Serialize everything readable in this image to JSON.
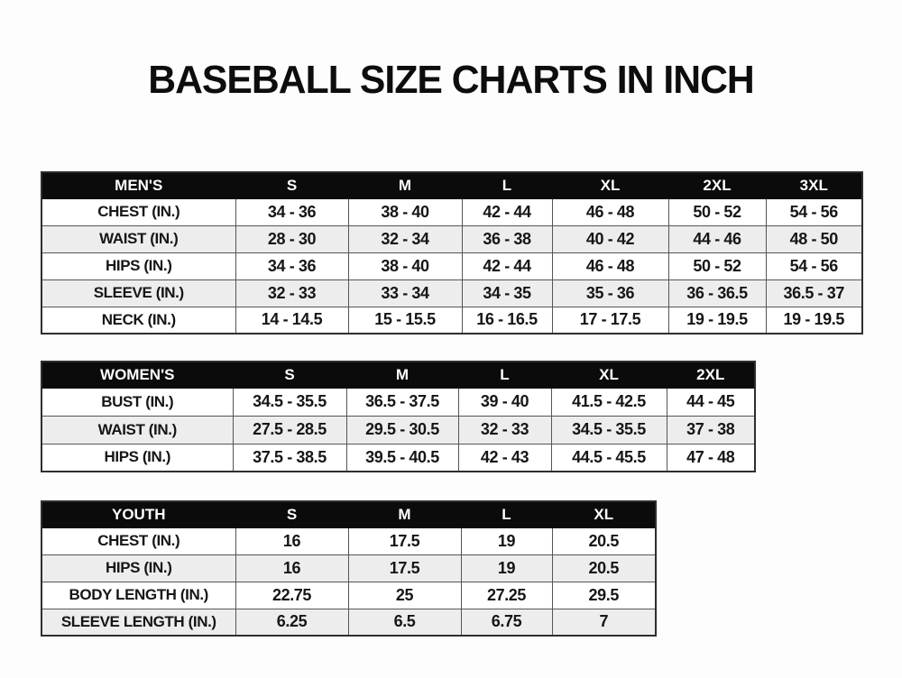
{
  "page": {
    "title": "BASEBALL SIZE CHARTS IN INCH"
  },
  "colors": {
    "header_bg": "#0b0b0b",
    "header_text": "#ffffff",
    "row_alt_bg": "#ededed",
    "border": "#555555",
    "text": "#161616",
    "page_bg": "#fdfdfd"
  },
  "tables": [
    {
      "id": "mens",
      "group_label": "MEN'S",
      "size_headers": [
        "S",
        "M",
        "L",
        "XL",
        "2XL",
        "3XL"
      ],
      "rows": [
        {
          "label": "CHEST (IN.)",
          "values": [
            "34 - 36",
            "38 - 40",
            "42 - 44",
            "46 - 48",
            "50 - 52",
            "54 - 56"
          ]
        },
        {
          "label": "WAIST (IN.)",
          "values": [
            "28 - 30",
            "32 - 34",
            "36 - 38",
            "40 - 42",
            "44 - 46",
            "48 - 50"
          ]
        },
        {
          "label": "HIPS (IN.)",
          "values": [
            "34 - 36",
            "38 - 40",
            "42 - 44",
            "46 - 48",
            "50 - 52",
            "54 - 56"
          ]
        },
        {
          "label": "SLEEVE (IN.)",
          "values": [
            "32 - 33",
            "33 - 34",
            "34 - 35",
            "35 - 36",
            "36 - 36.5",
            "36.5 - 37"
          ]
        },
        {
          "label": "NECK (IN.)",
          "values": [
            "14 - 14.5",
            "15 - 15.5",
            "16 - 16.5",
            "17 - 17.5",
            "19 - 19.5",
            "19 - 19.5"
          ]
        }
      ]
    },
    {
      "id": "womens",
      "group_label": "WOMEN'S",
      "size_headers": [
        "S",
        "M",
        "L",
        "XL",
        "2XL"
      ],
      "rows": [
        {
          "label": "BUST (IN.)",
          "values": [
            "34.5 - 35.5",
            "36.5 - 37.5",
            "39 - 40",
            "41.5 - 42.5",
            "44 - 45"
          ]
        },
        {
          "label": "WAIST (IN.)",
          "values": [
            "27.5 - 28.5",
            "29.5 - 30.5",
            "32 - 33",
            "34.5 - 35.5",
            "37 - 38"
          ]
        },
        {
          "label": "HIPS (IN.)",
          "values": [
            "37.5 - 38.5",
            "39.5 - 40.5",
            "42 - 43",
            "44.5 - 45.5",
            "47 - 48"
          ]
        }
      ]
    },
    {
      "id": "youth",
      "group_label": "YOUTH",
      "size_headers": [
        "S",
        "M",
        "L",
        "XL"
      ],
      "rows": [
        {
          "label": "CHEST (IN.)",
          "values": [
            "16",
            "17.5",
            "19",
            "20.5"
          ]
        },
        {
          "label": "HIPS (IN.)",
          "values": [
            "16",
            "17.5",
            "19",
            "20.5"
          ]
        },
        {
          "label": "BODY LENGTH (IN.)",
          "values": [
            "22.75",
            "25",
            "27.25",
            "29.5"
          ]
        },
        {
          "label": "SLEEVE LENGTH (IN.)",
          "values": [
            "6.25",
            "6.5",
            "6.75",
            "7"
          ]
        }
      ]
    }
  ]
}
